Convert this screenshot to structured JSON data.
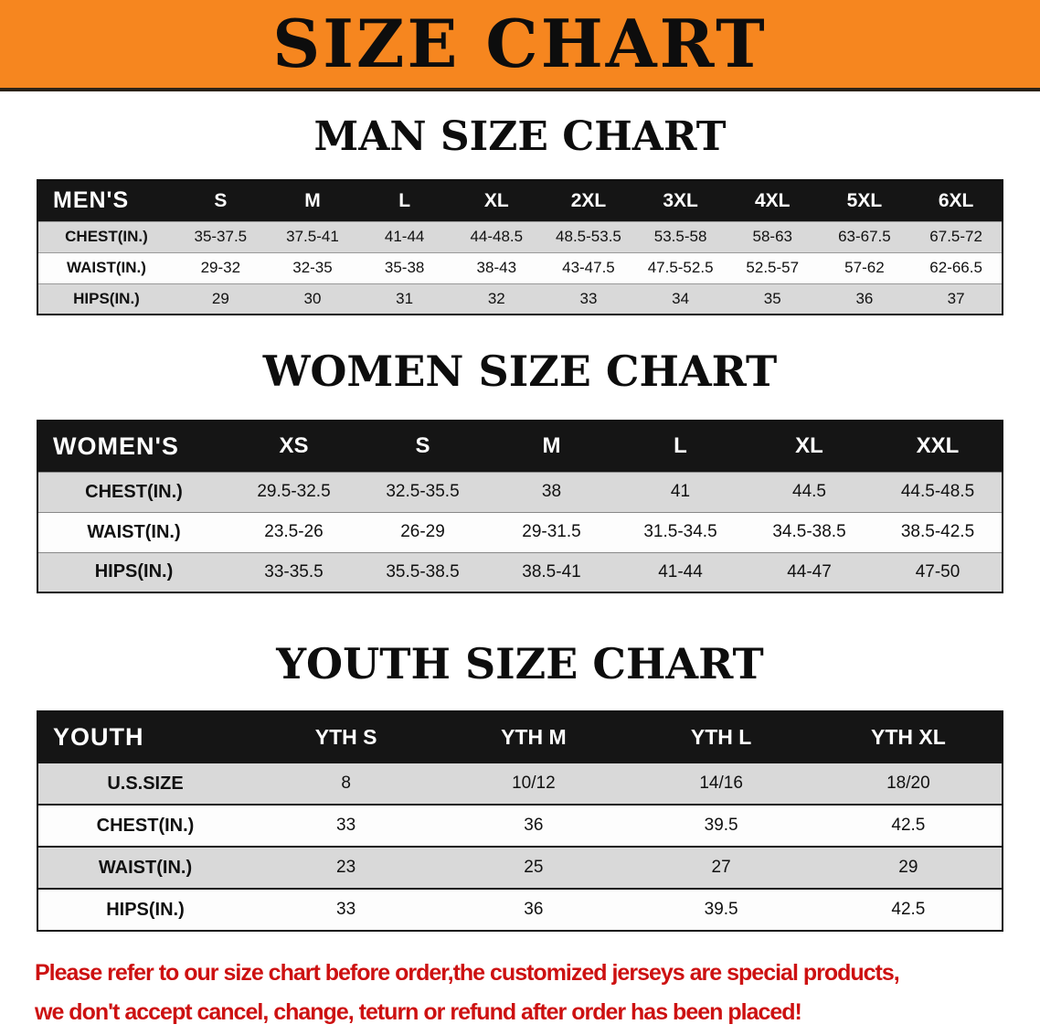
{
  "banner": {
    "title": "SIZE CHART"
  },
  "colors": {
    "banner_orange": "#F6861F",
    "header_black": "#151515",
    "row_shade": "#d9d9d9",
    "disclaimer_red": "#cd1111"
  },
  "sections": [
    {
      "id": "men",
      "heading": "MAN SIZE CHART",
      "table": {
        "label": "MEN'S",
        "columns": [
          "S",
          "M",
          "L",
          "XL",
          "2XL",
          "3XL",
          "4XL",
          "5XL",
          "6XL"
        ],
        "rows": [
          {
            "label": "CHEST(IN.)",
            "values": [
              "35-37.5",
              "37.5-41",
              "41-44",
              "44-48.5",
              "48.5-53.5",
              "53.5-58",
              "58-63",
              "63-67.5",
              "67.5-72"
            ]
          },
          {
            "label": "WAIST(IN.)",
            "values": [
              "29-32",
              "32-35",
              "35-38",
              "38-43",
              "43-47.5",
              "47.5-52.5",
              "52.5-57",
              "57-62",
              "62-66.5"
            ]
          },
          {
            "label": "HIPS(IN.)",
            "values": [
              "29",
              "30",
              "31",
              "32",
              "33",
              "34",
              "35",
              "36",
              "37"
            ]
          }
        ]
      }
    },
    {
      "id": "women",
      "heading": "WOMEN SIZE CHART",
      "table": {
        "label": "WOMEN'S",
        "columns": [
          "XS",
          "S",
          "M",
          "L",
          "XL",
          "XXL"
        ],
        "rows": [
          {
            "label": "CHEST(IN.)",
            "values": [
              "29.5-32.5",
              "32.5-35.5",
              "38",
              "41",
              "44.5",
              "44.5-48.5"
            ]
          },
          {
            "label": "WAIST(IN.)",
            "values": [
              "23.5-26",
              "26-29",
              "29-31.5",
              "31.5-34.5",
              "34.5-38.5",
              "38.5-42.5"
            ]
          },
          {
            "label": "HIPS(IN.)",
            "values": [
              "33-35.5",
              "35.5-38.5",
              "38.5-41",
              "41-44",
              "44-47",
              "47-50"
            ]
          }
        ]
      }
    },
    {
      "id": "youth",
      "heading": "YOUTH SIZE CHART",
      "table": {
        "label": "YOUTH",
        "columns": [
          "YTH S",
          "YTH M",
          "YTH L",
          "YTH XL"
        ],
        "rows": [
          {
            "label": "U.S.SIZE",
            "values": [
              "8",
              "10/12",
              "14/16",
              "18/20"
            ]
          },
          {
            "label": "CHEST(IN.)",
            "values": [
              "33",
              "36",
              "39.5",
              "42.5"
            ]
          },
          {
            "label": "WAIST(IN.)",
            "values": [
              "23",
              "25",
              "27",
              "29"
            ]
          },
          {
            "label": "HIPS(IN.)",
            "values": [
              "33",
              "36",
              "39.5",
              "42.5"
            ]
          }
        ]
      }
    }
  ],
  "disclaimer": {
    "line1": "Please refer to our size chart before order,the customized jerseys are special products,",
    "line2": "we don't accept cancel, change, teturn or refund after order has been placed!"
  }
}
